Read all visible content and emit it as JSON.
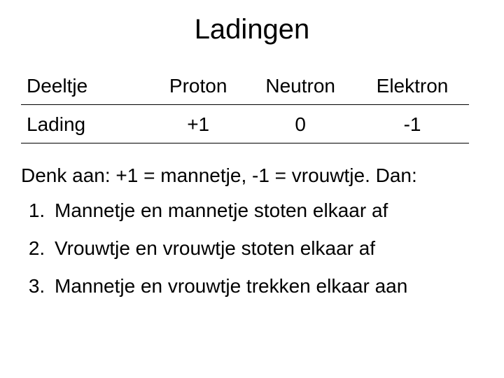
{
  "title": "Ladingen",
  "table": {
    "row1": {
      "label": "Deeltje",
      "c1": "Proton",
      "c2": "Neutron",
      "c3": "Elektron"
    },
    "row2": {
      "label": "Lading",
      "c1": "+1",
      "c2": "0",
      "c3": "-1"
    }
  },
  "intro": "Denk aan: +1 = mannetje, -1 = vrouwtje. Dan:",
  "list": {
    "i1": "Mannetje en mannetje stoten elkaar af",
    "i2": "Vrouwtje en vrouwtje stoten elkaar af",
    "i3": "Mannetje en vrouwtje trekken elkaar aan"
  }
}
